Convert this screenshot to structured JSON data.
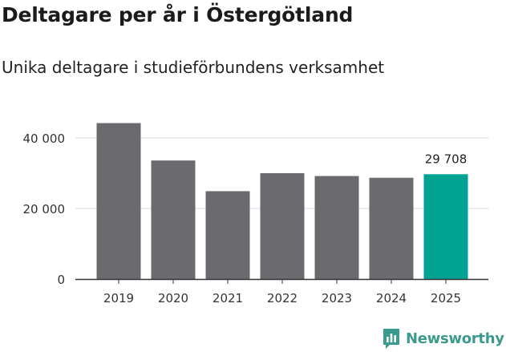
{
  "header": {
    "title": "Deltagare per år i Östergötland",
    "subtitle": "Unika deltagare i studieförbundens verksamhet"
  },
  "brand": {
    "name": "Newsworthy"
  },
  "colors": {
    "bar": "#6b6b6f",
    "highlight": "#00a392",
    "grid": "#d8d8d8",
    "axis": "#333333",
    "brand": "#3b9a8e"
  },
  "chart_data": {
    "type": "bar",
    "title": "Deltagare per år i Östergötland",
    "subtitle": "Unika deltagare i studieförbundens verksamhet",
    "categories": [
      "2019",
      "2020",
      "2021",
      "2022",
      "2023",
      "2024",
      "2025"
    ],
    "values": [
      44200,
      33600,
      24900,
      30000,
      29200,
      28700,
      29708
    ],
    "highlight_index": 6,
    "data_labels": [
      {
        "index": 6,
        "text": "29 708"
      }
    ],
    "y_ticks": [
      0,
      20000,
      40000
    ],
    "y_tick_labels": [
      "0",
      "20 000",
      "40 000"
    ],
    "ylim": [
      0,
      50000
    ],
    "xlabel": "",
    "ylabel": "",
    "grid": true
  }
}
